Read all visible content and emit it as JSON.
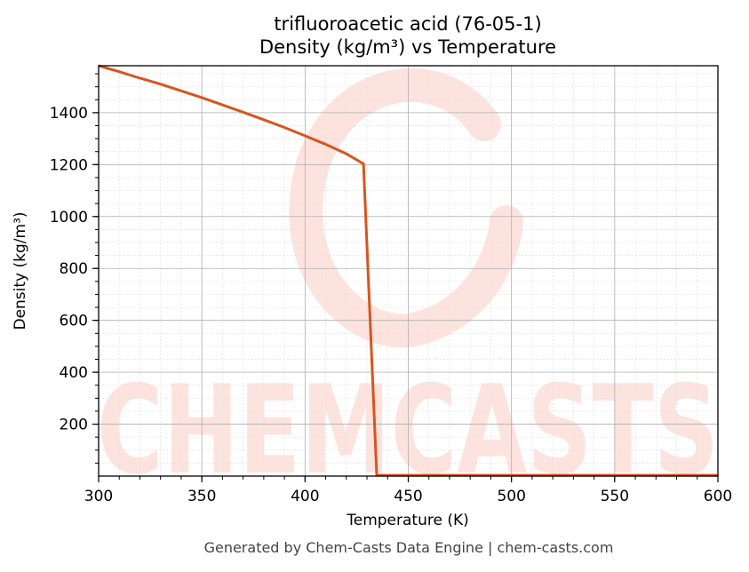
{
  "title_line1": "trifluoroacetic acid (76-05-1)",
  "title_line2": "Density (kg/m³) vs Temperature",
  "footer": "Generated by Chem-Casts Data Engine | chem-casts.com",
  "watermark": "CHEMCASTS",
  "colors": {
    "line": "#d9541e",
    "watermark": "#fde3de",
    "grid_major": "#b0b0b0",
    "grid_minor": "#e0e0e0"
  },
  "chart_data": {
    "type": "line",
    "title": "trifluoroacetic acid (76-05-1)\nDensity (kg/m³) vs Temperature",
    "xlabel": "Temperature (K)",
    "ylabel": "Density (kg/m³)",
    "xlim": [
      300,
      600
    ],
    "ylim": [
      0,
      1581
    ],
    "xticks": [
      300,
      350,
      400,
      450,
      500,
      550,
      600
    ],
    "yticks": [
      200,
      400,
      600,
      800,
      1000,
      1200,
      1400
    ],
    "x_minor_step": 10,
    "y_minor_step": 50,
    "grid": true,
    "legend": null,
    "series": [
      {
        "name": "Density",
        "x": [
          300,
          310,
          320,
          330,
          340,
          350,
          360,
          370,
          380,
          390,
          400,
          410,
          420,
          428.3,
          434.7,
          450,
          500,
          550,
          600
        ],
        "y": [
          1581,
          1558,
          1533,
          1510,
          1484,
          1458,
          1430,
          1402,
          1373,
          1343,
          1311,
          1278,
          1242,
          1203,
          3,
          3,
          3,
          3,
          3
        ]
      }
    ]
  }
}
